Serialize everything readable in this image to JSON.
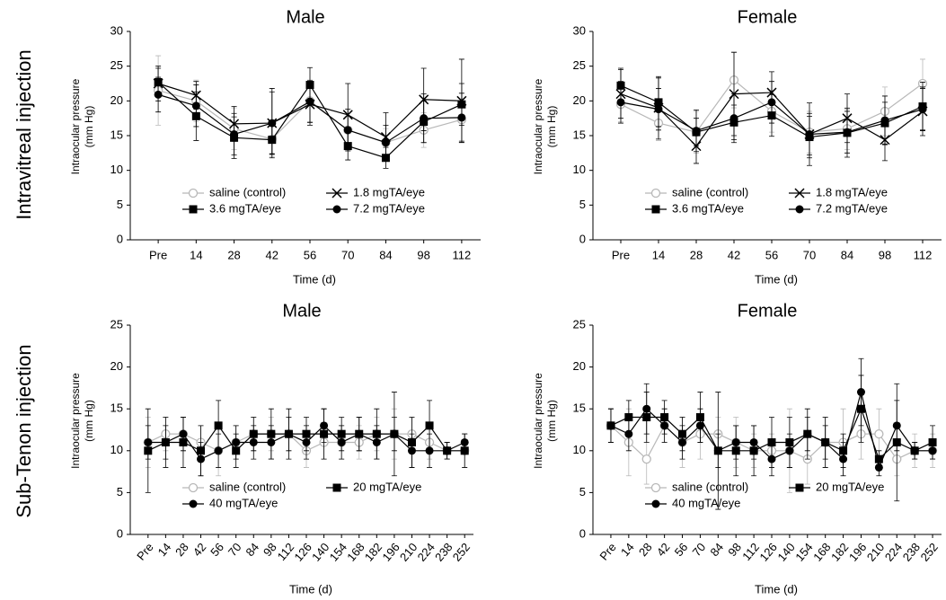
{
  "row_labels": [
    "Intravitreal injection",
    "Sub-Tenon injection"
  ],
  "chart_data": [
    {
      "type": "line",
      "title": "Male",
      "x_label": "Time (d)",
      "y_label": [
        "Intraocular pressure",
        "(mm Hg)"
      ],
      "categories": [
        "Pre",
        "14",
        "28",
        "42",
        "56",
        "70",
        "84",
        "98",
        "112"
      ],
      "ylim": [
        0,
        30
      ],
      "yticks": [
        0,
        5,
        10,
        15,
        20,
        25,
        30
      ],
      "legend": "lower left",
      "series": [
        {
          "name": "saline (control)",
          "color": "#b8b8b8",
          "marker": "circle-open",
          "values": [
            21.5,
            20,
            16,
            14.5,
            20,
            15.8,
            14,
            15.8,
            17.3
          ],
          "errors": [
            5,
            3,
            3,
            2.5,
            3,
            3,
            2,
            2.5,
            3
          ]
        },
        {
          "name": "1.8  mgTA/eye",
          "color": "#000000",
          "marker": "x",
          "values": [
            22.5,
            20.8,
            16.7,
            16.8,
            19.5,
            18,
            14.8,
            20.2,
            20
          ],
          "errors": [
            2.5,
            2,
            2.5,
            5,
            3,
            4.5,
            3.5,
            4.5,
            6
          ]
        },
        {
          "name": "3.6 mgTA/eye",
          "color": "#000000",
          "marker": "square",
          "values": [
            22.7,
            17.8,
            14.7,
            14.4,
            22.3,
            13.5,
            11.8,
            17,
            19.5
          ],
          "errors": [
            2,
            3.5,
            3,
            2,
            2.5,
            2,
            1.5,
            3,
            3
          ]
        },
        {
          "name": "7.2 mgTA/eye",
          "color": "#000000",
          "marker": "circle",
          "values": [
            20.9,
            19.3,
            15.2,
            16.8,
            19.9,
            15.8,
            14,
            17.5,
            17.6
          ],
          "errors": [
            2.5,
            3,
            3,
            4.5,
            3,
            3,
            2.5,
            3.5,
            3.5
          ]
        }
      ]
    },
    {
      "type": "line",
      "title": "Female",
      "x_label": "Time (d)",
      "y_label": [
        "Intraocular pressure",
        "(mm Hg)"
      ],
      "categories": [
        "Pre",
        "14",
        "28",
        "42",
        "56",
        "70",
        "84",
        "98",
        "112"
      ],
      "ylim": [
        0,
        30
      ],
      "yticks": [
        0,
        5,
        10,
        15,
        20,
        25,
        30
      ],
      "legend": "lower left",
      "series": [
        {
          "name": "saline (control)",
          "color": "#b8b8b8",
          "marker": "circle-open",
          "values": [
            19.5,
            16.8,
            15.5,
            23,
            18.5,
            15.5,
            16,
            18.5,
            22.5
          ],
          "errors": [
            2.5,
            2.5,
            3,
            4,
            3,
            3,
            3,
            3.5,
            3.5
          ]
        },
        {
          "name": "1.8  mgTA/eye",
          "color": "#000000",
          "marker": "x",
          "values": [
            21,
            19,
            13.5,
            21,
            21.2,
            15.2,
            17.5,
            14.4,
            18.5
          ],
          "errors": [
            3.5,
            4.5,
            2.5,
            6,
            3,
            4.5,
            3.5,
            3,
            3.5
          ]
        },
        {
          "name": "3.6 mgTA/eye",
          "color": "#000000",
          "marker": "square",
          "values": [
            22.2,
            19.8,
            15.5,
            16.9,
            17.9,
            14.8,
            15.4,
            16.8,
            19.2
          ],
          "errors": [
            2.5,
            3.5,
            2,
            2.5,
            3,
            3,
            3.5,
            3,
            3.5
          ]
        },
        {
          "name": "7.2  mgTA/eye",
          "color": "#000000",
          "marker": "circle",
          "values": [
            19.8,
            18.8,
            15.7,
            17.5,
            19.8,
            15.2,
            15.5,
            17.2,
            18.8
          ],
          "errors": [
            3,
            3,
            3,
            3.5,
            3,
            3,
            3,
            3.5,
            3
          ]
        }
      ]
    },
    {
      "type": "line",
      "title": "Male",
      "x_label": "Time (d)",
      "y_label": [
        "Intraocular pressure",
        "(mm Hg)"
      ],
      "categories": [
        "Pre",
        "14",
        "28",
        "42",
        "56",
        "70",
        "84",
        "98",
        "112",
        "126",
        "140",
        "154",
        "168",
        "182",
        "196",
        "210",
        "224",
        "238",
        "252"
      ],
      "ylim": [
        0,
        25
      ],
      "yticks": [
        0,
        5,
        10,
        15,
        20,
        25
      ],
      "legend": "lower left",
      "series": [
        {
          "name": "saline (control)",
          "color": "#b8b8b8",
          "marker": "circle-open",
          "values": [
            11,
            12,
            12,
            11,
            10,
            11,
            12,
            12,
            12,
            10,
            11,
            11,
            11,
            12,
            12,
            12,
            11,
            10,
            10
          ],
          "errors": [
            3,
            2,
            2,
            2,
            3,
            2,
            2,
            2,
            2,
            2,
            2,
            2,
            2,
            2,
            3,
            2,
            2,
            1,
            2
          ]
        },
        {
          "name": "20 mgTA/eye",
          "color": "#000000",
          "marker": "square",
          "values": [
            10,
            11,
            11,
            10,
            13,
            10,
            12,
            12,
            12,
            12,
            12,
            12,
            12,
            12,
            12,
            11,
            13,
            10,
            10
          ],
          "errors": [
            5,
            3,
            3,
            3,
            3,
            2,
            2,
            3,
            3,
            2,
            3,
            2,
            2,
            3,
            5,
            3,
            3,
            1,
            2
          ]
        },
        {
          "name": "40 mgTA/eye",
          "color": "#000000",
          "marker": "circle",
          "values": [
            11,
            11,
            12,
            9,
            10,
            11,
            11,
            11,
            12,
            11,
            13,
            11,
            12,
            11,
            12,
            10,
            10,
            10,
            11
          ],
          "errors": [
            2,
            2,
            2,
            2,
            2,
            2,
            2,
            2,
            2,
            2,
            2,
            2,
            2,
            2,
            2,
            2,
            2,
            1,
            1
          ]
        }
      ]
    },
    {
      "type": "line",
      "title": "Female",
      "x_label": "Time (d)",
      "y_label": [
        "Intraocular pressure",
        "(mm Hg)"
      ],
      "categories": [
        "Pre",
        "14",
        "28",
        "42",
        "56",
        "70",
        "84",
        "98",
        "112",
        "126",
        "140",
        "154",
        "168",
        "182",
        "196",
        "210",
        "224",
        "238",
        "252"
      ],
      "ylim": [
        0,
        25
      ],
      "yticks": [
        0,
        5,
        10,
        15,
        20,
        25
      ],
      "legend": "lower left",
      "series": [
        {
          "name": "saline (control)",
          "color": "#b8b8b8",
          "marker": "circle-open",
          "values": [
            13,
            11,
            9,
            13,
            11,
            12,
            12,
            11,
            10,
            10,
            10,
            9,
            11,
            11,
            12,
            12,
            9,
            10,
            10
          ],
          "errors": [
            2,
            4,
            3,
            2,
            3,
            3,
            2,
            3,
            2,
            2,
            5,
            3,
            3,
            4,
            3,
            3,
            2,
            2,
            2
          ]
        },
        {
          "name": "20 mgTA/eye",
          "color": "#000000",
          "marker": "square",
          "values": [
            13,
            14,
            14,
            14,
            12,
            14,
            10,
            10,
            10,
            11,
            11,
            12,
            11,
            10,
            15,
            9,
            11,
            10,
            11
          ],
          "errors": [
            2,
            2,
            3,
            2,
            2,
            3,
            7,
            3,
            3,
            3,
            3,
            3,
            3,
            2,
            4,
            1,
            7,
            1,
            2
          ]
        },
        {
          "name": "40 mgTA/eye",
          "color": "#000000",
          "marker": "circle",
          "values": [
            13,
            12,
            15,
            13,
            11,
            13,
            10,
            11,
            11,
            9,
            10,
            12,
            11,
            9,
            17,
            8,
            13,
            10,
            10
          ],
          "errors": [
            2,
            2,
            3,
            2,
            2,
            2,
            2,
            2,
            2,
            2,
            2,
            2,
            2,
            2,
            4,
            1,
            3,
            1,
            1
          ]
        }
      ]
    }
  ]
}
